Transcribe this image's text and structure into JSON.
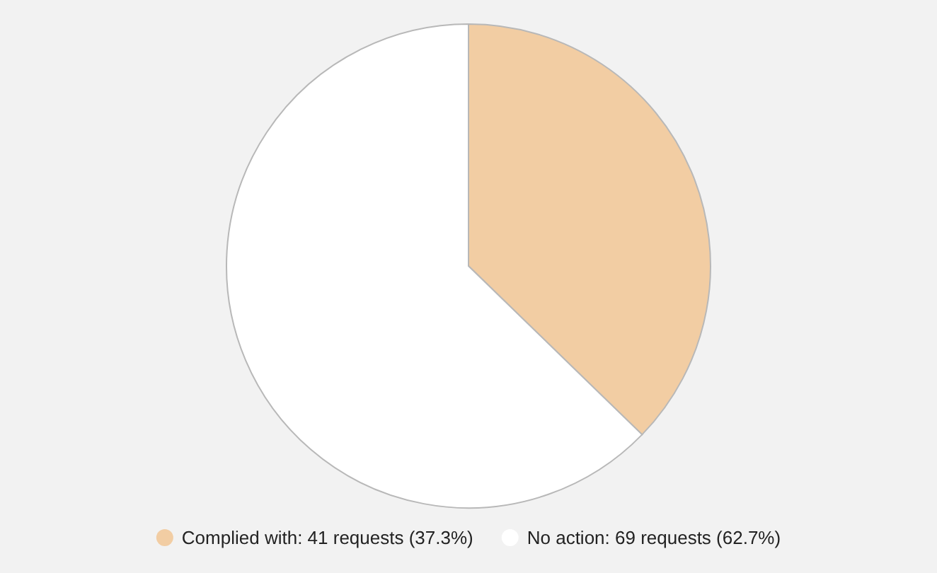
{
  "chart_data": {
    "type": "pie",
    "categories": [
      "Complied with: 41 requests (37.3%)",
      "No action: 69 requests (62.7%)"
    ],
    "values": [
      41,
      69
    ],
    "colors": [
      "#f2cda3",
      "#ffffff"
    ],
    "legend": "bottom"
  }
}
